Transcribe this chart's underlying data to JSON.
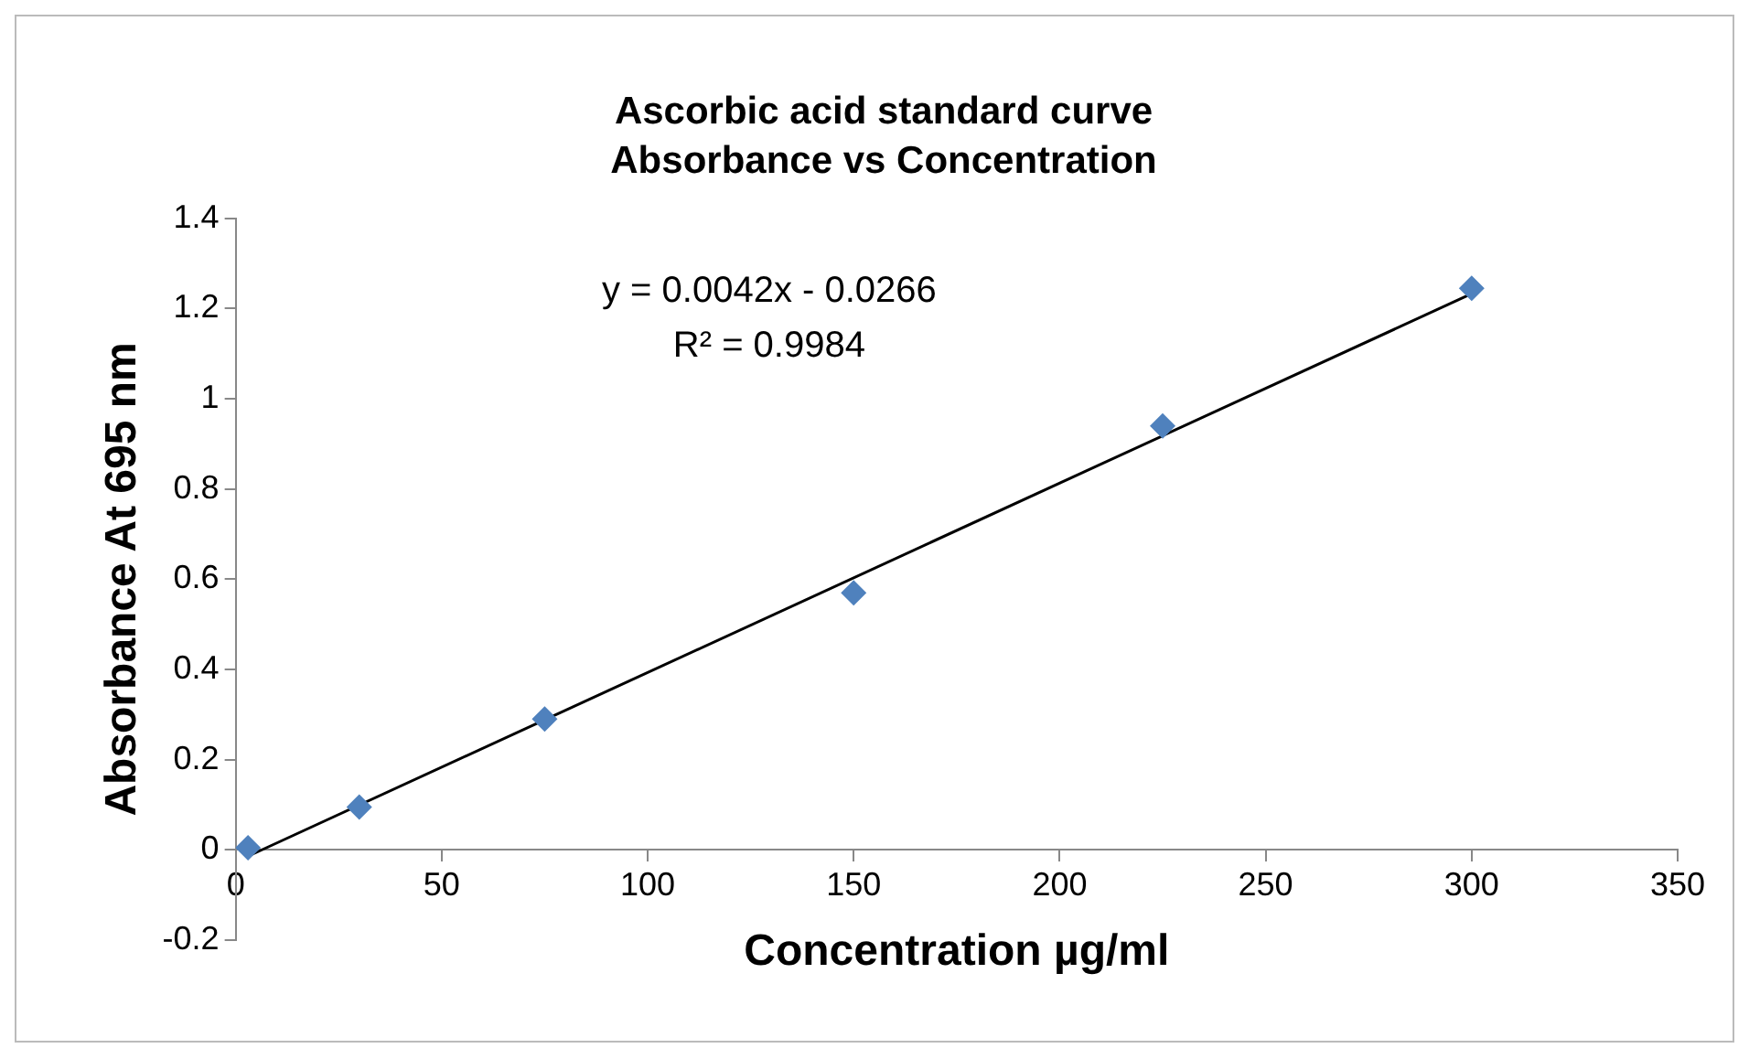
{
  "chart_data": {
    "type": "scatter",
    "title": "Ascorbic acid standard curve",
    "subtitle": "Absorbance vs Concentration",
    "xlabel": "Concentration µg/ml",
    "ylabel": "Absorbance At 695 nm",
    "x": [
      3,
      30,
      75,
      150,
      225,
      300
    ],
    "series": [
      {
        "type": "scatter",
        "color": "#4f81bd",
        "marker": "diamond",
        "values": [
          0.005,
          0.095,
          0.29,
          0.57,
          0.94,
          1.245
        ]
      },
      {
        "type": "line",
        "color": "#000000",
        "marker": "none",
        "x": [
          3,
          300
        ],
        "values": [
          -0.014,
          1.233
        ]
      }
    ],
    "annotations": [
      "y = 0.0042x - 0.0266",
      "R² = 0.9984"
    ],
    "xlim": [
      0,
      350
    ],
    "xticks": [
      0,
      50,
      100,
      150,
      200,
      250,
      300,
      350
    ],
    "ylim": [
      -0.2,
      1.4
    ],
    "yticks": [
      -0.2,
      0,
      0.2,
      0.4,
      0.6,
      0.8,
      1,
      1.2,
      1.4
    ],
    "grid": false,
    "legend": false
  }
}
